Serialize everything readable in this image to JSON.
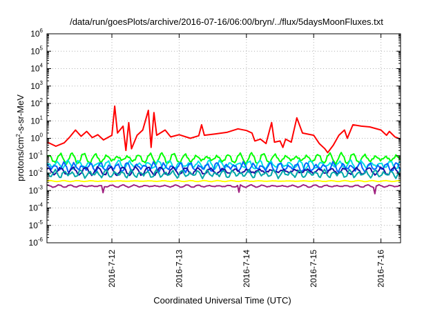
{
  "chart_data": {
    "type": "line",
    "title": "/data/run/goesPlots/archive/2016-07-16/06:00/bryn/../flux/5daysMoonFluxes.txt",
    "xlabel": "Coordinated Universal Time (UTC)",
    "ylabel_parts": [
      "protons/cm",
      "2",
      "-s-sr-MeV"
    ],
    "yscale": "log",
    "ylim": [
      1e-06,
      1000000.0
    ],
    "xlim": [
      "2016-07-11 00:50",
      "2016-07-16 07:00"
    ],
    "grid": true,
    "x_ticks": [
      {
        "label": "2016-7-12",
        "date": "2016-07-12"
      },
      {
        "label": "2016-7-13",
        "date": "2016-07-13"
      },
      {
        "label": "2016-7-14",
        "date": "2016-07-14"
      },
      {
        "label": "2016-7-15",
        "date": "2016-07-15"
      },
      {
        "label": "2016-7-16",
        "date": "2016-07-16"
      }
    ],
    "y_ticks": [
      {
        "base": "10",
        "exp": "-6"
      },
      {
        "base": "10",
        "exp": "-5"
      },
      {
        "base": "10",
        "exp": "-4"
      },
      {
        "base": "10",
        "exp": "-3"
      },
      {
        "base": "10",
        "exp": "-2"
      },
      {
        "base": "10",
        "exp": "-1"
      },
      {
        "base": "10",
        "exp": "0"
      },
      {
        "base": "10",
        "exp": "1"
      },
      {
        "base": "10",
        "exp": "2"
      },
      {
        "base": "10",
        "exp": "3"
      },
      {
        "base": "10",
        "exp": "4"
      },
      {
        "base": "10",
        "exp": "5"
      },
      {
        "base": "10",
        "exp": "6"
      }
    ],
    "series": [
      {
        "color": "#ff0000",
        "points": [
          [
            "2016-07-11 01:00",
            0.6
          ],
          [
            "2016-07-11 04:00",
            0.35
          ],
          [
            "2016-07-11 07:00",
            0.55
          ],
          [
            "2016-07-11 09:00",
            1.2
          ],
          [
            "2016-07-11 11:00",
            3.0
          ],
          [
            "2016-07-11 13:00",
            1.3
          ],
          [
            "2016-07-11 15:00",
            2.5
          ],
          [
            "2016-07-11 17:00",
            1.1
          ],
          [
            "2016-07-11 19:00",
            1.6
          ],
          [
            "2016-07-11 21:00",
            0.8
          ],
          [
            "2016-07-12 00:00",
            1.5
          ],
          [
            "2016-07-12 01:00",
            70
          ],
          [
            "2016-07-12 02:00",
            2.0
          ],
          [
            "2016-07-12 04:00",
            5.0
          ],
          [
            "2016-07-12 05:00",
            0.2
          ],
          [
            "2016-07-12 06:00",
            8.0
          ],
          [
            "2016-07-12 07:00",
            0.25
          ],
          [
            "2016-07-12 09:00",
            1.5
          ],
          [
            "2016-07-12 11:00",
            3.0
          ],
          [
            "2016-07-12 13:00",
            40
          ],
          [
            "2016-07-12 14:00",
            0.3
          ],
          [
            "2016-07-12 15:00",
            30
          ],
          [
            "2016-07-12 16:00",
            1.5
          ],
          [
            "2016-07-12 19:00",
            3.0
          ],
          [
            "2016-07-12 21:00",
            1.2
          ],
          [
            "2016-07-13 00:00",
            1.6
          ],
          [
            "2016-07-13 04:00",
            1.0
          ],
          [
            "2016-07-13 07:00",
            1.4
          ],
          [
            "2016-07-13 08:00",
            6.0
          ],
          [
            "2016-07-13 09:00",
            1.5
          ],
          [
            "2016-07-13 13:00",
            1.8
          ],
          [
            "2016-07-13 17:00",
            2.2
          ],
          [
            "2016-07-13 21:00",
            3.5
          ],
          [
            "2016-07-14 00:00",
            2.8
          ],
          [
            "2016-07-14 02:00",
            2.0
          ],
          [
            "2016-07-14 03:00",
            0.7
          ],
          [
            "2016-07-14 05:00",
            0.9
          ],
          [
            "2016-07-14 07:00",
            0.5
          ],
          [
            "2016-07-14 09:00",
            8.0
          ],
          [
            "2016-07-14 10:00",
            0.6
          ],
          [
            "2016-07-14 12:00",
            0.7
          ],
          [
            "2016-07-14 13:00",
            0.3
          ],
          [
            "2016-07-14 14:00",
            0.9
          ],
          [
            "2016-07-14 16:00",
            0.6
          ],
          [
            "2016-07-14 18:00",
            15
          ],
          [
            "2016-07-14 20:00",
            2.0
          ],
          [
            "2016-07-15 00:00",
            1.5
          ],
          [
            "2016-07-15 02:00",
            0.5
          ],
          [
            "2016-07-15 04:00",
            0.25
          ],
          [
            "2016-07-15 05:00",
            0.15
          ],
          [
            "2016-07-15 07:00",
            0.4
          ],
          [
            "2016-07-15 09:00",
            1.5
          ],
          [
            "2016-07-15 11:00",
            3.0
          ],
          [
            "2016-07-15 12:00",
            1.0
          ],
          [
            "2016-07-15 14:00",
            6.0
          ],
          [
            "2016-07-15 17:00",
            5.0
          ],
          [
            "2016-07-15 20:00",
            4.5
          ],
          [
            "2016-07-16 00:00",
            3.0
          ],
          [
            "2016-07-16 02:00",
            1.5
          ],
          [
            "2016-07-16 03:00",
            2.5
          ],
          [
            "2016-07-16 05:00",
            1.2
          ],
          [
            "2016-07-16 07:00",
            0.9
          ]
        ]
      },
      {
        "color": "#00ff00",
        "base": 0.07,
        "amp": 0.65,
        "period": 4.0,
        "phase": 0.0
      },
      {
        "color": "#00e0e0",
        "base": 0.03,
        "amp": 0.55,
        "period": 3.6,
        "phase": 1.0
      },
      {
        "color": "#0066ff",
        "base": 0.022,
        "amp": 0.6,
        "period": 3.2,
        "phase": 2.0
      },
      {
        "color": "#1a10a0",
        "base": 0.013,
        "amp": 0.5,
        "period": 4.4,
        "phase": 0.5
      },
      {
        "color": "#00a8a8",
        "base": 0.009,
        "amp": 0.5,
        "period": 3.0,
        "phase": 1.5
      },
      {
        "color": "#ffff00",
        "base": 0.0035,
        "amp": 0.06,
        "period": 5.0,
        "phase": 0.2
      },
      {
        "color": "#a02080",
        "base": 0.0018,
        "amp": 0.15,
        "period": 3.8,
        "phase": 0.7
      }
    ]
  }
}
